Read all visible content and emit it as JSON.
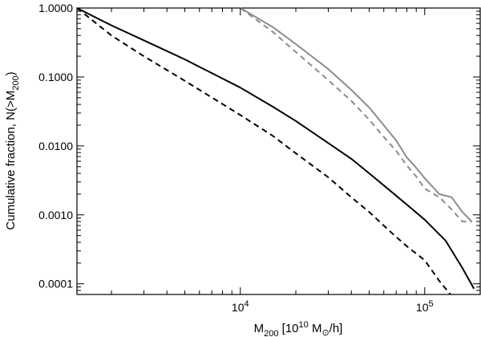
{
  "chart_data": {
    "type": "line",
    "xscale": "log",
    "yscale": "log",
    "xlim": [
      1300,
      200000
    ],
    "ylim": [
      7e-05,
      1.0
    ],
    "grid": false,
    "legend": "none",
    "xlabel": {
      "main": "M",
      "sub": "200",
      "after_sub": " [10",
      "exp": "10",
      "after_exp": " M",
      "sun_symbol": "⊙",
      "tail": "/h]"
    },
    "ylabel": {
      "main": "Cumulative fraction, N(>M",
      "sub": "200",
      "tail": ")"
    },
    "x_ticks": [
      {
        "value": 10000,
        "base": "10",
        "exp": "4"
      },
      {
        "value": 100000,
        "base": "10",
        "exp": "5"
      }
    ],
    "y_ticks": [
      {
        "value": 1.0,
        "label": "1.0000"
      },
      {
        "value": 0.1,
        "label": "0.1000"
      },
      {
        "value": 0.01,
        "label": "0.0100"
      },
      {
        "value": 0.001,
        "label": "0.0010"
      },
      {
        "value": 0.0001,
        "label": "0.0001"
      }
    ],
    "series": [
      {
        "color": "#000000",
        "dash": "solid",
        "x": [
          1300,
          2000,
          3000,
          5000,
          10000,
          15000,
          20000,
          30000,
          40000,
          50000,
          70000,
          100000,
          130000,
          160000,
          185000
        ],
        "y": [
          1.0,
          0.56,
          0.34,
          0.18,
          0.07,
          0.037,
          0.023,
          0.011,
          0.0065,
          0.004,
          0.0019,
          0.00085,
          0.00042,
          0.00017,
          8.5e-05
        ]
      },
      {
        "color": "#000000",
        "dash": "dashed",
        "x": [
          1300,
          2000,
          3000,
          5000,
          10000,
          15000,
          20000,
          30000,
          40000,
          50000,
          60000,
          70000,
          80000,
          100000,
          120000,
          138000
        ],
        "y": [
          1.0,
          0.4,
          0.2,
          0.088,
          0.028,
          0.014,
          0.0078,
          0.0035,
          0.0018,
          0.0011,
          0.0007,
          0.00048,
          0.00035,
          0.00022,
          0.00011,
          7e-05
        ]
      },
      {
        "color": "#8c8c8c",
        "dash": "solid",
        "x": [
          10000,
          15000,
          20000,
          30000,
          40000,
          50000,
          60000,
          70000,
          80000,
          90000,
          100000,
          120000,
          140000,
          160000,
          180000
        ],
        "y": [
          1.0,
          0.53,
          0.3,
          0.13,
          0.065,
          0.036,
          0.02,
          0.012,
          0.0068,
          0.0048,
          0.0034,
          0.002,
          0.0018,
          0.0011,
          0.0008
        ]
      },
      {
        "color": "#8c8c8c",
        "dash": "dashed",
        "x": [
          10000,
          15000,
          20000,
          30000,
          40000,
          50000,
          60000,
          70000,
          80000,
          90000,
          100000,
          120000,
          140000,
          160000,
          180000
        ],
        "y": [
          1.0,
          0.45,
          0.23,
          0.09,
          0.045,
          0.024,
          0.0135,
          0.0085,
          0.0052,
          0.0036,
          0.0024,
          0.0018,
          0.0012,
          0.0008,
          0.0008
        ]
      }
    ]
  }
}
